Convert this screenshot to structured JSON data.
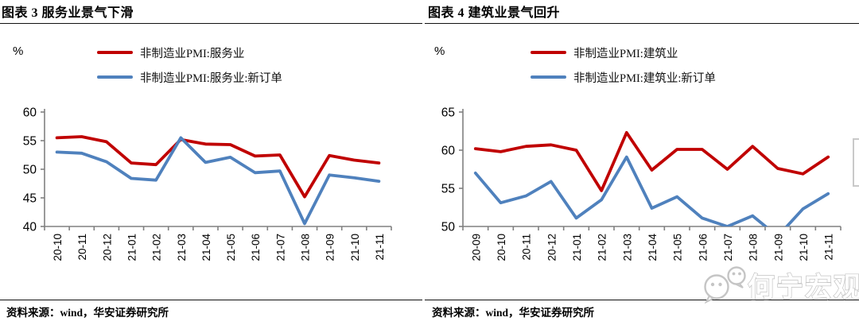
{
  "page": {
    "watermark": {
      "text": "何宁宏观"
    },
    "colors": {
      "series_red": "#C00000",
      "series_blue": "#4F81BD",
      "axis_gray": "#808080",
      "watermark_gray": "#c5c5c5",
      "text_black": "#000000"
    }
  },
  "chart_data": [
    {
      "type": "line",
      "title": "图表 3 服务业景气下滑",
      "unit_label": "%",
      "source": "资料来源：wind，华安证券研究所",
      "legend_position": "top",
      "grid": false,
      "categories": [
        "20-10",
        "20-11",
        "20-12",
        "21-01",
        "21-02",
        "21-03",
        "21-04",
        "21-05",
        "21-06",
        "21-07",
        "21-08",
        "21-09",
        "21-10",
        "21-11"
      ],
      "ylim": [
        40,
        60
      ],
      "yticks": [
        40,
        45,
        50,
        55,
        60
      ],
      "series": [
        {
          "name": "非制造业PMI:服务业",
          "color": "#C00000",
          "values": [
            55.5,
            55.7,
            54.8,
            51.1,
            50.8,
            55.2,
            54.4,
            54.3,
            52.3,
            52.5,
            45.2,
            52.4,
            51.6,
            51.1
          ]
        },
        {
          "name": "非制造业PMI:服务业:新订单",
          "color": "#4F81BD",
          "values": [
            53.0,
            52.8,
            51.3,
            48.4,
            48.1,
            55.5,
            51.2,
            52.1,
            49.4,
            49.7,
            40.5,
            49.0,
            48.5,
            47.9
          ]
        }
      ]
    },
    {
      "type": "line",
      "title": "图表 4 建筑业景气回升",
      "unit_label": "%",
      "source": "资料来源：wind，华安证券研究所",
      "legend_position": "top",
      "grid": false,
      "categories": [
        "20-09",
        "20-10",
        "20-11",
        "20-12",
        "21-01",
        "21-02",
        "21-03",
        "21-04",
        "21-05",
        "21-06",
        "21-07",
        "21-08",
        "21-09",
        "21-10",
        "21-11"
      ],
      "ylim": [
        50,
        65
      ],
      "yticks": [
        50,
        55,
        60,
        65
      ],
      "series": [
        {
          "name": "非制造业PMI:建筑业",
          "color": "#C00000",
          "values": [
            60.2,
            59.8,
            60.5,
            60.7,
            60.0,
            54.7,
            62.3,
            57.4,
            60.1,
            60.1,
            57.5,
            60.5,
            57.6,
            56.9,
            59.1
          ]
        },
        {
          "name": "非制造业PMI:建筑业:新订单",
          "color": "#4F81BD",
          "values": [
            57.0,
            53.1,
            54.0,
            55.9,
            51.1,
            53.5,
            59.1,
            52.4,
            53.9,
            51.1,
            50.0,
            51.4,
            48.7,
            52.3,
            54.3
          ]
        }
      ]
    }
  ]
}
